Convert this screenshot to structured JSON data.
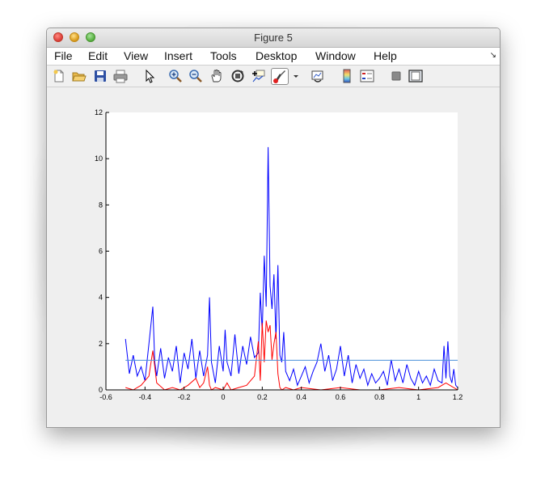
{
  "window": {
    "title": "Figure 5"
  },
  "menu": [
    "File",
    "Edit",
    "View",
    "Insert",
    "Tools",
    "Desktop",
    "Window",
    "Help"
  ],
  "toolbar": [
    {
      "name": "new-figure-icon"
    },
    {
      "name": "open-file-icon"
    },
    {
      "name": "save-icon"
    },
    {
      "name": "print-icon"
    },
    {
      "name": "pointer-icon"
    },
    {
      "name": "zoom-in-icon"
    },
    {
      "name": "zoom-out-icon"
    },
    {
      "name": "pan-hand-icon"
    },
    {
      "name": "rotate-3d-icon"
    },
    {
      "name": "data-cursor-icon"
    },
    {
      "name": "brush-icon"
    },
    {
      "name": "brush-dropdown-icon"
    },
    {
      "name": "link-plot-icon"
    },
    {
      "name": "colorbar-icon"
    },
    {
      "name": "legend-icon"
    },
    {
      "name": "hide-plot-tools-icon"
    },
    {
      "name": "show-plot-tools-icon"
    }
  ],
  "chart_data": {
    "type": "line",
    "xlim": [
      -0.6,
      1.2
    ],
    "ylim": [
      0,
      12
    ],
    "xticks": [
      "-0.6",
      "-0.4",
      "-0.2",
      "0",
      "0.2",
      "0.4",
      "0.6",
      "0.8",
      "1",
      "1.2"
    ],
    "xtick_values": [
      -0.6,
      -0.4,
      -0.2,
      0,
      0.2,
      0.4,
      0.6,
      0.8,
      1,
      1.2
    ],
    "yticks": [
      "0",
      "2",
      "4",
      "6",
      "8",
      "10",
      "12"
    ],
    "ytick_values": [
      0,
      2,
      4,
      6,
      8,
      10,
      12
    ],
    "grid": false,
    "series": [
      {
        "color": "#0000ff",
        "x": [
          -0.5,
          -0.48,
          -0.46,
          -0.44,
          -0.42,
          -0.4,
          -0.38,
          -0.36,
          -0.35,
          -0.34,
          -0.32,
          -0.3,
          -0.28,
          -0.26,
          -0.24,
          -0.22,
          -0.2,
          -0.18,
          -0.16,
          -0.14,
          -0.12,
          -0.1,
          -0.08,
          -0.07,
          -0.06,
          -0.04,
          -0.02,
          0,
          0.01,
          0.02,
          0.04,
          0.06,
          0.08,
          0.1,
          0.12,
          0.14,
          0.16,
          0.18,
          0.19,
          0.2,
          0.21,
          0.22,
          0.23,
          0.24,
          0.25,
          0.26,
          0.27,
          0.28,
          0.29,
          0.3,
          0.31,
          0.32,
          0.34,
          0.36,
          0.38,
          0.4,
          0.42,
          0.44,
          0.46,
          0.48,
          0.5,
          0.52,
          0.54,
          0.56,
          0.58,
          0.6,
          0.62,
          0.64,
          0.66,
          0.68,
          0.7,
          0.72,
          0.74,
          0.76,
          0.78,
          0.8,
          0.82,
          0.84,
          0.86,
          0.88,
          0.9,
          0.92,
          0.94,
          0.96,
          0.98,
          1,
          1.02,
          1.04,
          1.06,
          1.08,
          1.1,
          1.12,
          1.13,
          1.14,
          1.15,
          1.16,
          1.17,
          1.18,
          1.19,
          1.2
        ],
        "y": [
          2.2,
          0.7,
          1.5,
          0.6,
          1.0,
          0.4,
          2.0,
          3.6,
          1.2,
          0.6,
          1.8,
          0.5,
          1.4,
          0.8,
          1.9,
          0.3,
          1.6,
          0.9,
          2.2,
          0.5,
          1.7,
          0.6,
          1.5,
          4.0,
          1.2,
          0.3,
          1.9,
          0.8,
          2.6,
          1.2,
          0.6,
          2.4,
          0.7,
          1.9,
          1.1,
          2.3,
          1.4,
          1.6,
          4.2,
          2.5,
          5.8,
          3.6,
          10.5,
          4.5,
          3.5,
          5.0,
          2.2,
          5.4,
          1.5,
          1.2,
          2.5,
          0.8,
          0.4,
          0.9,
          0.2,
          0.6,
          1.0,
          0.3,
          0.8,
          1.2,
          2.0,
          0.8,
          1.5,
          0.4,
          0.9,
          1.9,
          0.6,
          1.5,
          0.3,
          1.1,
          0.5,
          0.9,
          0.2,
          0.7,
          0.3,
          0.5,
          0.8,
          0.2,
          1.3,
          0.4,
          0.9,
          0.3,
          1.1,
          0.5,
          0.2,
          0.8,
          0.3,
          0.6,
          0.2,
          0.9,
          0.4,
          0.3,
          1.9,
          0.5,
          2.1,
          0.6,
          0.3,
          0.9,
          0.2,
          0.1
        ]
      },
      {
        "color": "#ff0000",
        "x": [
          -0.5,
          -0.46,
          -0.42,
          -0.38,
          -0.36,
          -0.34,
          -0.3,
          -0.26,
          -0.22,
          -0.18,
          -0.14,
          -0.12,
          -0.1,
          -0.08,
          -0.07,
          -0.06,
          -0.04,
          0,
          0.02,
          0.04,
          0.08,
          0.12,
          0.16,
          0.18,
          0.19,
          0.2,
          0.21,
          0.22,
          0.23,
          0.24,
          0.25,
          0.26,
          0.27,
          0.28,
          0.29,
          0.3,
          0.32,
          0.36,
          0.4,
          0.5,
          0.6,
          0.7,
          0.8,
          0.9,
          1,
          1.1,
          1.14,
          1.16,
          1.2
        ],
        "y": [
          0.1,
          0.0,
          0.2,
          0.6,
          1.7,
          0.3,
          0.0,
          0.1,
          0.0,
          0.2,
          0.5,
          0.1,
          0.3,
          1.0,
          0.2,
          0.0,
          0.1,
          0.0,
          0.3,
          0.0,
          0.1,
          0.2,
          0.6,
          2.1,
          0.4,
          2.9,
          1.2,
          3.0,
          2.5,
          2.8,
          1.3,
          2.0,
          2.5,
          0.7,
          0.1,
          0.0,
          0.1,
          0.0,
          0.1,
          0.0,
          0.1,
          0.0,
          0.0,
          0.1,
          0.0,
          0.1,
          0.3,
          0.2,
          0.0
        ]
      },
      {
        "color": "#4a90d9",
        "x": [
          -0.5,
          1.2
        ],
        "y": [
          1.28,
          1.28
        ]
      }
    ]
  }
}
